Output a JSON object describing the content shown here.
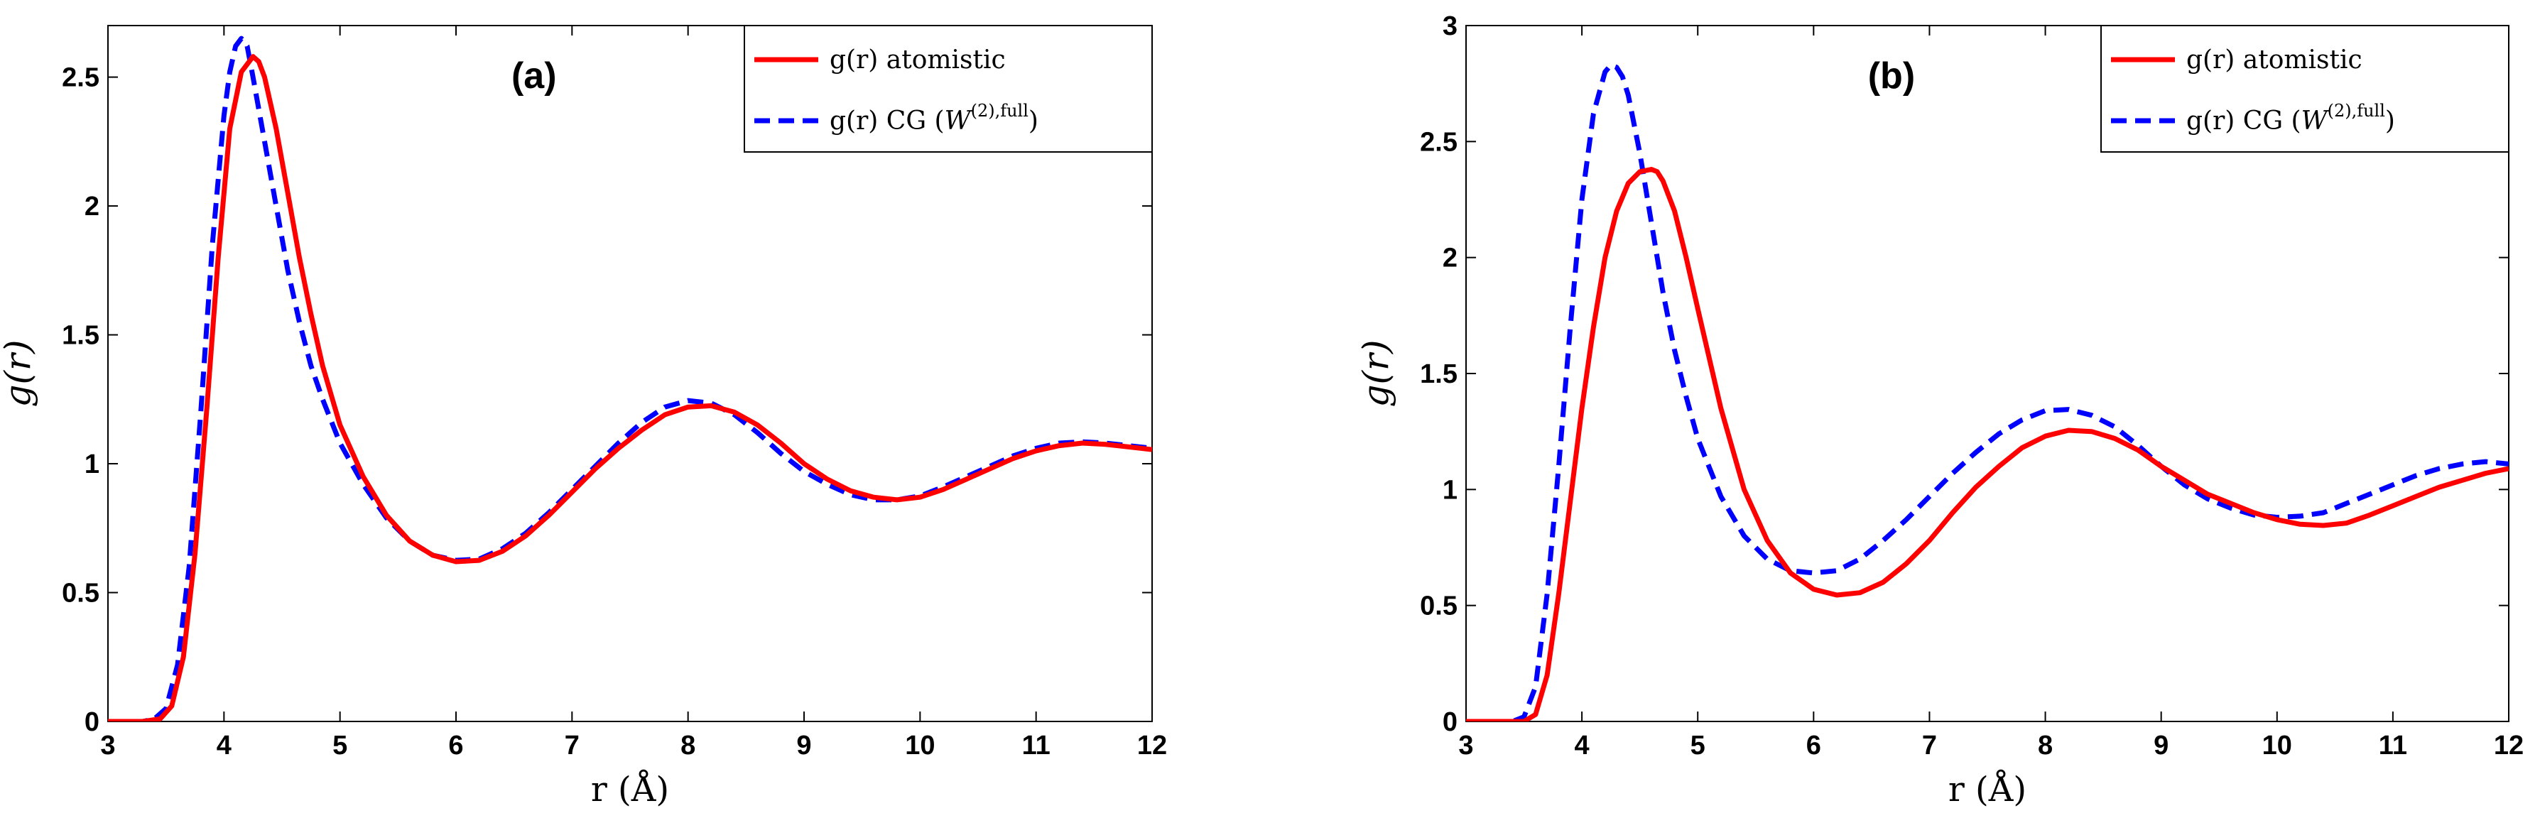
{
  "chart_data": [
    {
      "type": "line",
      "panel": "(a)",
      "title": "(a)",
      "xlabel": "r (Å)",
      "ylabel": "g(r)",
      "xlim": [
        3,
        12
      ],
      "ylim": [
        0,
        2.7
      ],
      "xticks": [
        "3",
        "4",
        "5",
        "6",
        "7",
        "8",
        "9",
        "10",
        "11",
        "12"
      ],
      "yticks": [
        "0",
        "0.5",
        "1",
        "1.5",
        "2",
        "2.5"
      ],
      "ytick_values": [
        0,
        0.5,
        1,
        1.5,
        2,
        2.5
      ],
      "legend_position": "top-right",
      "series": [
        {
          "name": "g(r) atomistic",
          "legend_main": "g(r) atomistic",
          "color": "#ff0000",
          "style": "solid",
          "x": [
            3.0,
            3.3,
            3.45,
            3.55,
            3.65,
            3.75,
            3.85,
            3.95,
            4.05,
            4.15,
            4.25,
            4.3,
            4.35,
            4.45,
            4.55,
            4.65,
            4.75,
            4.85,
            5.0,
            5.2,
            5.4,
            5.6,
            5.8,
            6.0,
            6.2,
            6.4,
            6.6,
            6.8,
            7.0,
            7.2,
            7.4,
            7.6,
            7.8,
            8.0,
            8.2,
            8.4,
            8.6,
            8.8,
            9.0,
            9.2,
            9.4,
            9.6,
            9.8,
            10.0,
            10.2,
            10.4,
            10.6,
            10.8,
            11.0,
            11.2,
            11.4,
            11.6,
            11.8,
            12.0
          ],
          "y": [
            0,
            0,
            0.01,
            0.06,
            0.25,
            0.65,
            1.2,
            1.8,
            2.3,
            2.52,
            2.58,
            2.56,
            2.5,
            2.3,
            2.05,
            1.8,
            1.58,
            1.38,
            1.15,
            0.95,
            0.8,
            0.7,
            0.645,
            0.62,
            0.625,
            0.66,
            0.72,
            0.8,
            0.89,
            0.98,
            1.06,
            1.13,
            1.19,
            1.22,
            1.225,
            1.2,
            1.15,
            1.08,
            1.0,
            0.94,
            0.895,
            0.87,
            0.86,
            0.87,
            0.9,
            0.94,
            0.98,
            1.02,
            1.05,
            1.07,
            1.08,
            1.075,
            1.065,
            1.055
          ]
        },
        {
          "name": "g(r) CG (W(2),full)",
          "legend_main": "g(r) CG (",
          "legend_w": "W",
          "legend_sup": "(2),full",
          "legend_close": ")",
          "color": "#0000ff",
          "style": "dashed",
          "x": [
            3.0,
            3.3,
            3.4,
            3.5,
            3.6,
            3.7,
            3.8,
            3.9,
            4.0,
            4.05,
            4.1,
            4.15,
            4.2,
            4.25,
            4.35,
            4.45,
            4.55,
            4.65,
            4.75,
            4.85,
            5.0,
            5.2,
            5.4,
            5.6,
            5.8,
            6.0,
            6.2,
            6.4,
            6.6,
            6.8,
            7.0,
            7.2,
            7.4,
            7.6,
            7.8,
            8.0,
            8.2,
            8.4,
            8.6,
            8.8,
            9.0,
            9.2,
            9.4,
            9.6,
            9.8,
            10.0,
            10.2,
            10.4,
            10.6,
            10.8,
            11.0,
            11.2,
            11.4,
            11.6,
            11.8,
            12.0
          ],
          "y": [
            0,
            0,
            0.01,
            0.05,
            0.22,
            0.6,
            1.2,
            1.85,
            2.35,
            2.52,
            2.62,
            2.65,
            2.62,
            2.5,
            2.25,
            2.0,
            1.75,
            1.55,
            1.38,
            1.25,
            1.08,
            0.92,
            0.79,
            0.7,
            0.645,
            0.625,
            0.63,
            0.67,
            0.73,
            0.81,
            0.9,
            0.99,
            1.08,
            1.16,
            1.22,
            1.245,
            1.235,
            1.19,
            1.12,
            1.04,
            0.97,
            0.92,
            0.88,
            0.86,
            0.86,
            0.875,
            0.91,
            0.95,
            0.99,
            1.03,
            1.06,
            1.08,
            1.085,
            1.08,
            1.07,
            1.06
          ]
        }
      ]
    },
    {
      "type": "line",
      "panel": "(b)",
      "title": "(b)",
      "xlabel": "r (Å)",
      "ylabel": "g(r)",
      "xlim": [
        3,
        12
      ],
      "ylim": [
        0,
        3
      ],
      "xticks": [
        "3",
        "4",
        "5",
        "6",
        "7",
        "8",
        "9",
        "10",
        "11",
        "12"
      ],
      "yticks": [
        "0",
        "0.5",
        "1",
        "1.5",
        "2",
        "2.5",
        "3"
      ],
      "ytick_values": [
        0,
        0.5,
        1,
        1.5,
        2,
        2.5,
        3
      ],
      "legend_position": "top-right",
      "series": [
        {
          "name": "g(r) atomistic",
          "legend_main": "g(r) atomistic",
          "color": "#ff0000",
          "style": "solid",
          "x": [
            3.0,
            3.5,
            3.6,
            3.7,
            3.8,
            3.9,
            4.0,
            4.1,
            4.2,
            4.3,
            4.4,
            4.5,
            4.6,
            4.65,
            4.7,
            4.8,
            4.9,
            5.0,
            5.2,
            5.4,
            5.6,
            5.8,
            6.0,
            6.2,
            6.4,
            6.6,
            6.8,
            7.0,
            7.2,
            7.4,
            7.6,
            7.8,
            8.0,
            8.2,
            8.4,
            8.6,
            8.8,
            9.0,
            9.2,
            9.4,
            9.6,
            9.8,
            10.0,
            10.2,
            10.4,
            10.6,
            10.8,
            11.0,
            11.2,
            11.4,
            11.6,
            11.8,
            12.0
          ],
          "y": [
            0,
            0,
            0.03,
            0.2,
            0.55,
            0.95,
            1.35,
            1.7,
            2.0,
            2.2,
            2.32,
            2.37,
            2.38,
            2.37,
            2.33,
            2.2,
            2.0,
            1.78,
            1.35,
            1.0,
            0.78,
            0.64,
            0.57,
            0.545,
            0.555,
            0.6,
            0.68,
            0.78,
            0.9,
            1.01,
            1.1,
            1.18,
            1.23,
            1.255,
            1.25,
            1.22,
            1.17,
            1.1,
            1.04,
            0.98,
            0.94,
            0.9,
            0.87,
            0.85,
            0.845,
            0.855,
            0.89,
            0.93,
            0.97,
            1.01,
            1.04,
            1.07,
            1.09
          ]
        },
        {
          "name": "g(r) CG (W(2),full)",
          "legend_main": "g(r) CG (",
          "legend_w": "W",
          "legend_sup": "(2),full",
          "legend_close": ")",
          "color": "#0000ff",
          "style": "dashed",
          "x": [
            3.0,
            3.4,
            3.5,
            3.6,
            3.7,
            3.8,
            3.9,
            4.0,
            4.1,
            4.2,
            4.25,
            4.3,
            4.35,
            4.4,
            4.5,
            4.6,
            4.7,
            4.8,
            4.9,
            5.0,
            5.2,
            5.4,
            5.6,
            5.8,
            6.0,
            6.2,
            6.4,
            6.6,
            6.8,
            7.0,
            7.2,
            7.4,
            7.6,
            7.8,
            8.0,
            8.2,
            8.4,
            8.6,
            8.8,
            9.0,
            9.2,
            9.4,
            9.6,
            9.8,
            10.0,
            10.2,
            10.4,
            10.6,
            10.8,
            11.0,
            11.2,
            11.4,
            11.6,
            11.8,
            12.0
          ],
          "y": [
            0,
            0,
            0.02,
            0.15,
            0.55,
            1.1,
            1.7,
            2.25,
            2.62,
            2.8,
            2.83,
            2.82,
            2.78,
            2.7,
            2.45,
            2.15,
            1.85,
            1.6,
            1.4,
            1.22,
            0.97,
            0.8,
            0.7,
            0.65,
            0.64,
            0.65,
            0.7,
            0.78,
            0.87,
            0.97,
            1.07,
            1.16,
            1.24,
            1.3,
            1.34,
            1.345,
            1.32,
            1.27,
            1.19,
            1.1,
            1.02,
            0.96,
            0.92,
            0.89,
            0.88,
            0.885,
            0.9,
            0.94,
            0.98,
            1.02,
            1.06,
            1.09,
            1.11,
            1.12,
            1.11
          ]
        }
      ]
    }
  ]
}
